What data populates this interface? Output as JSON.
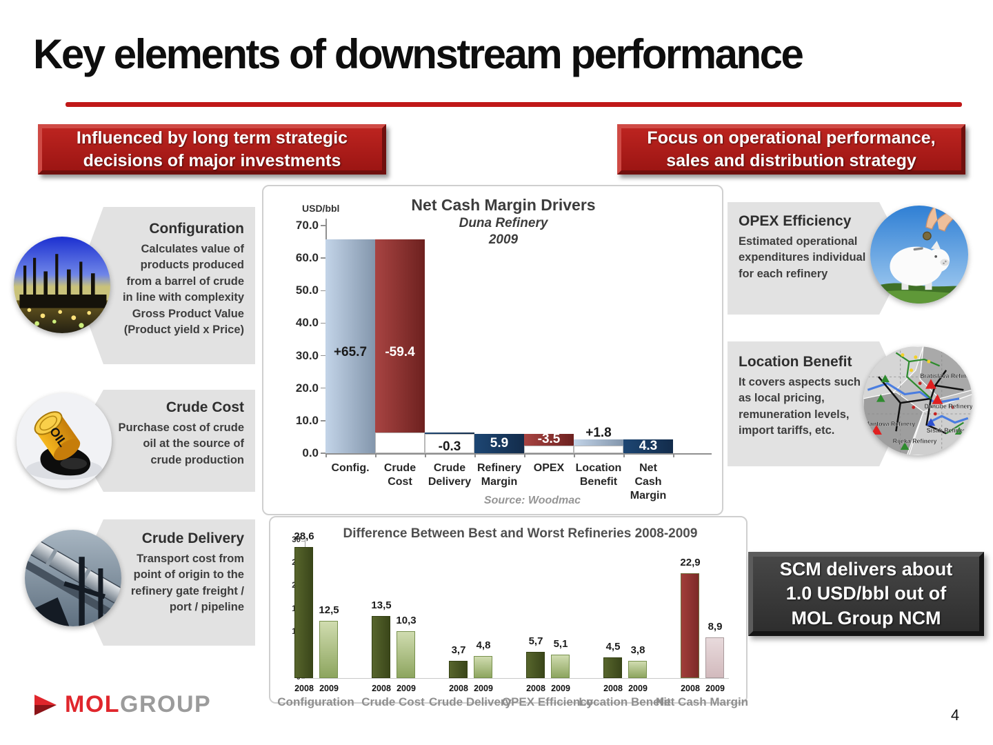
{
  "slide": {
    "title": "Key elements of downstream performance",
    "page_number": "4",
    "logo_mol": "MOL",
    "logo_group": "GROUP"
  },
  "banners": {
    "left": "Influenced by long term strategic decisions of major investments",
    "right": "Focus on operational performance, sales and distribution strategy"
  },
  "callouts": [
    {
      "title": "Configuration",
      "body": "Calculates value of products produced from a barrel of crude in line with complexity Gross Product Value (Product yield x Price)"
    },
    {
      "title": "Crude Cost",
      "body": "Purchase cost of crude oil at the source of crude production"
    },
    {
      "title": "Crude Delivery",
      "body": "Transport cost from point of origin to the refinery gate freight / port / pipeline"
    },
    {
      "title": "OPEX Efficiency",
      "body": "Estimated operational expenditures individual for each refinery"
    },
    {
      "title": "Location Benefit",
      "body": "It covers aspects such as local pricing, remuneration levels, import tariffs, etc."
    }
  ],
  "map_labels": [
    "Bratislava Refinery",
    "Danube Refinery",
    "Mantova Refinery",
    "Sisak Refinery",
    "Rijeka Refinery"
  ],
  "scm_box": {
    "line1": "SCM delivers about",
    "line2": "1.0 USD/bbl out of",
    "line3": "MOL Group NCM"
  },
  "chart_data": [
    {
      "type": "bar",
      "variant": "waterfall",
      "title": "Net Cash Margin Drivers",
      "subtitle": "Duna Refinery",
      "year": "2009",
      "unit": "USD/bbl",
      "source": "Source: Woodmac",
      "ylim": [
        0,
        70
      ],
      "yticks": [
        "0.0",
        "10.0",
        "20.0",
        "30.0",
        "40.0",
        "50.0",
        "60.0",
        "70.0"
      ],
      "categories": [
        "Config.",
        "Crude\nCost",
        "Crude\nDelivery",
        "Refinery\nMargin",
        "OPEX",
        "Location\nBenefit",
        "Net\nCash\nMargin"
      ],
      "values": [
        65.7,
        -59.4,
        -0.3,
        5.9,
        -3.5,
        1.8,
        4.3
      ],
      "bar_labels": [
        "+65.7",
        "-59.4",
        "-0.3",
        "5.9",
        "-3.5",
        "+1.8",
        "4.3"
      ],
      "segments": [
        [
          0,
          65.7
        ],
        [
          6.3,
          65.7
        ],
        [
          6.0,
          6.3
        ],
        [
          0,
          5.9
        ],
        [
          2.4,
          5.9
        ],
        [
          2.4,
          4.2
        ],
        [
          0,
          4.3
        ]
      ],
      "base_boxes": [
        null,
        [
          0,
          6.3
        ],
        [
          0,
          6.0
        ],
        null,
        [
          0,
          2.4
        ],
        [
          0,
          2.4
        ],
        null
      ],
      "styles": [
        "blue",
        "red",
        "navy",
        "navy",
        "red",
        "blue",
        "navy"
      ],
      "label_pos": [
        "inside-low",
        "inside-low",
        "below",
        "inside-mid",
        "inside-mid",
        "above",
        "inside-mid"
      ],
      "label_tone": [
        "dark",
        "light",
        "dark",
        "light",
        "light",
        "dark",
        "light"
      ],
      "colors": {
        "navy": "#17375d",
        "red": "#9e3a38",
        "blue_light": "#c3d4e8",
        "blue_dark": "#8396ac"
      }
    },
    {
      "type": "bar",
      "title": "Difference Between Best and Worst Refineries 2008-2009",
      "ylim": [
        0,
        30
      ],
      "yticks": [
        0,
        5,
        10,
        15,
        20,
        25,
        30
      ],
      "categories": [
        "Configuration",
        "Crude Cost",
        "Crude Delivery",
        "OPEX Efficiency",
        "Location Benefit",
        "Net Cash Margin"
      ],
      "series": [
        {
          "name": "2008",
          "values": [
            28.6,
            13.5,
            3.7,
            5.7,
            4.5,
            22.9
          ]
        },
        {
          "name": "2009",
          "values": [
            12.5,
            10.3,
            4.8,
            5.1,
            3.8,
            8.9
          ]
        }
      ],
      "value_labels": [
        [
          "28,6",
          "12,5"
        ],
        [
          "13,5",
          "10,3"
        ],
        [
          "3,7",
          "4,8"
        ],
        [
          "5,7",
          "5,1"
        ],
        [
          "4,5",
          "3,8"
        ],
        [
          "22,9",
          "8,9"
        ]
      ],
      "highlight_category": "Net Cash Margin",
      "colors": {
        "green_2008": "#47521f",
        "green_2009": "#a9bd7e",
        "red_2008": "#953a38",
        "pink_2009": "#ddc8cb"
      }
    }
  ]
}
